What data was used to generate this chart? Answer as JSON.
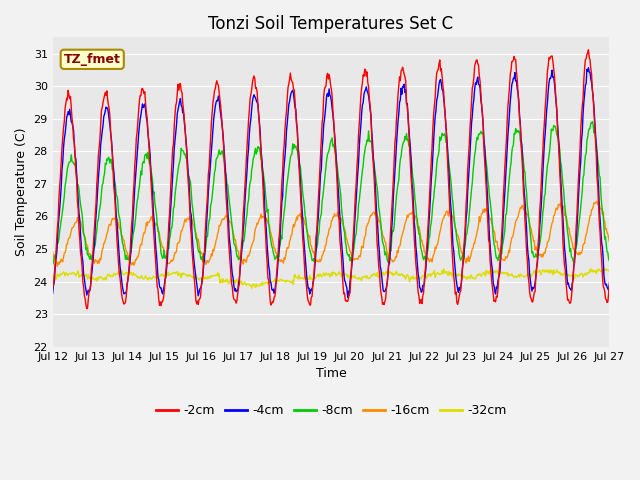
{
  "title": "Tonzi Soil Temperatures Set C",
  "xlabel": "Time",
  "ylabel": "Soil Temperature (C)",
  "ylim": [
    22.0,
    31.5
  ],
  "yticks": [
    22.0,
    23.0,
    24.0,
    25.0,
    26.0,
    27.0,
    28.0,
    29.0,
    30.0,
    31.0
  ],
  "xtick_labels": [
    "Jul 12",
    "Jul 13",
    "Jul 14",
    "Jul 15",
    "Jul 16",
    "Jul 17",
    "Jul 18",
    "Jul 19",
    "Jul 20",
    "Jul 21",
    "Jul 22",
    "Jul 23",
    "Jul 24",
    "Jul 25",
    "Jul 26",
    "Jul 27"
  ],
  "series": {
    "-2cm": {
      "color": "#FF0000",
      "linewidth": 1.0
    },
    "-4cm": {
      "color": "#0000FF",
      "linewidth": 1.0
    },
    "-8cm": {
      "color": "#00CC00",
      "linewidth": 1.0
    },
    "-16cm": {
      "color": "#FF8C00",
      "linewidth": 1.0
    },
    "-32cm": {
      "color": "#DDDD00",
      "linewidth": 1.0
    }
  },
  "annotation": {
    "text": "TZ_fmet",
    "bgcolor": "#FFFFCC",
    "edgecolor": "#AA8800",
    "fontsize": 9,
    "fontweight": "bold",
    "color": "#880000"
  },
  "fig_facecolor": "#F2F2F2",
  "plot_bg_color": "#E8E8E8",
  "grid_color": "#FFFFFF",
  "title_fontsize": 12,
  "label_fontsize": 9,
  "tick_fontsize": 8
}
